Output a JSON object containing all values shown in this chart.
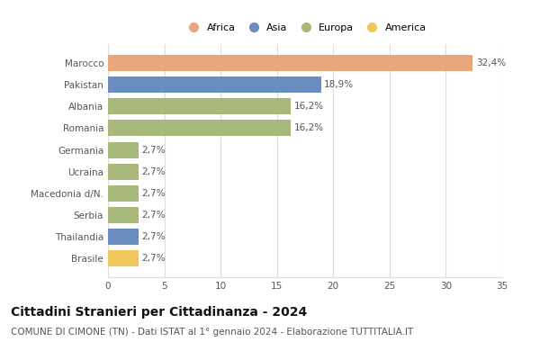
{
  "categories": [
    "Brasile",
    "Thailandia",
    "Serbia",
    "Macedonia d/N.",
    "Ucraina",
    "Germania",
    "Romania",
    "Albania",
    "Pakistan",
    "Marocco"
  ],
  "values": [
    2.7,
    2.7,
    2.7,
    2.7,
    2.7,
    2.7,
    16.2,
    16.2,
    18.9,
    32.4
  ],
  "labels": [
    "2,7%",
    "2,7%",
    "2,7%",
    "2,7%",
    "2,7%",
    "2,7%",
    "16,2%",
    "16,2%",
    "18,9%",
    "32,4%"
  ],
  "colors": [
    "#f0c75a",
    "#6b8cbf",
    "#a8b87a",
    "#a8b87a",
    "#a8b87a",
    "#a8b87a",
    "#a8b87a",
    "#a8b87a",
    "#6b8cbf",
    "#e8a87c"
  ],
  "continent": [
    "America",
    "Asia",
    "Europa",
    "Europa",
    "Europa",
    "Europa",
    "Europa",
    "Europa",
    "Asia",
    "Africa"
  ],
  "legend_labels": [
    "Africa",
    "Asia",
    "Europa",
    "America"
  ],
  "legend_colors": [
    "#e8a87c",
    "#6b8cbf",
    "#a8b87a",
    "#f0c75a"
  ],
  "xlim": [
    0,
    35
  ],
  "xticks": [
    0,
    5,
    10,
    15,
    20,
    25,
    30,
    35
  ],
  "title": "Cittadini Stranieri per Cittadinanza - 2024",
  "subtitle": "COMUNE DI CIMONE (TN) - Dati ISTAT al 1° gennaio 2024 - Elaborazione TUTTITALIA.IT",
  "bar_height": 0.75,
  "bg_color": "#ffffff",
  "grid_color": "#dddddd",
  "label_fontsize": 7.5,
  "tick_fontsize": 7.5,
  "title_fontsize": 10,
  "subtitle_fontsize": 7.5
}
